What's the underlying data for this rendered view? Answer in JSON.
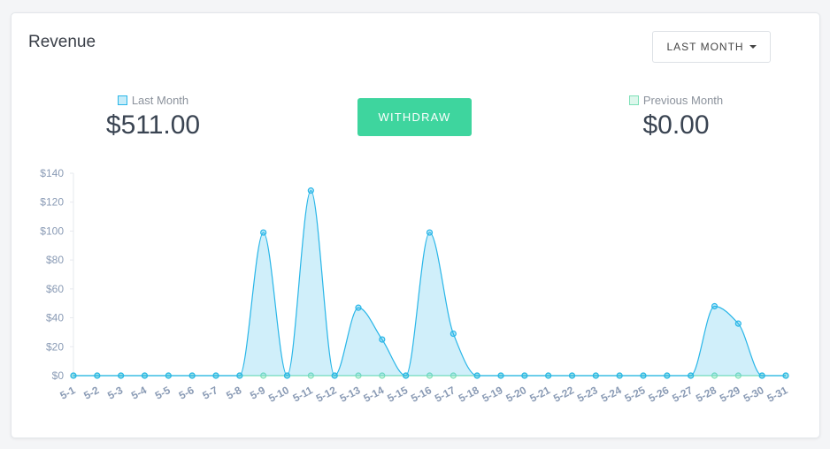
{
  "card": {
    "title": "Revenue",
    "period_button": "LAST MONTH",
    "action_button": "WITHDRAW"
  },
  "chart_data": {
    "type": "area",
    "categories": [
      "5-1",
      "5-2",
      "5-3",
      "5-4",
      "5-5",
      "5-6",
      "5-7",
      "5-8",
      "5-9",
      "5-10",
      "5-11",
      "5-12",
      "5-13",
      "5-14",
      "5-15",
      "5-16",
      "5-17",
      "5-18",
      "5-19",
      "5-20",
      "5-21",
      "5-22",
      "5-23",
      "5-24",
      "5-25",
      "5-26",
      "5-27",
      "5-28",
      "5-29",
      "5-30",
      "5-31"
    ],
    "series": [
      {
        "name": "Last Month",
        "total": "$511.00",
        "color": "#29b6e8",
        "values": [
          0,
          0,
          0,
          0,
          0,
          0,
          0,
          0,
          99,
          0,
          128,
          0,
          47,
          25,
          0,
          99,
          29,
          0,
          0,
          0,
          0,
          0,
          0,
          0,
          0,
          0,
          0,
          48,
          36,
          0,
          0
        ]
      },
      {
        "name": "Previous Month",
        "total": "$0.00",
        "color": "#7ee0b8",
        "values": [
          0,
          0,
          0,
          0,
          0,
          0,
          0,
          0,
          0,
          0,
          0,
          0,
          0,
          0,
          0,
          0,
          0,
          0,
          0,
          0,
          0,
          0,
          0,
          0,
          0,
          0,
          0,
          0,
          0,
          0,
          0
        ]
      }
    ],
    "ylim": [
      0,
      140
    ],
    "yticks": [
      {
        "value": 0,
        "label": "$0"
      },
      {
        "value": 20,
        "label": "$20"
      },
      {
        "value": 40,
        "label": "$40"
      },
      {
        "value": 60,
        "label": "$60"
      },
      {
        "value": 80,
        "label": "$80"
      },
      {
        "value": 100,
        "label": "$100"
      },
      {
        "value": 120,
        "label": "$120"
      },
      {
        "value": 140,
        "label": "$140"
      }
    ]
  }
}
